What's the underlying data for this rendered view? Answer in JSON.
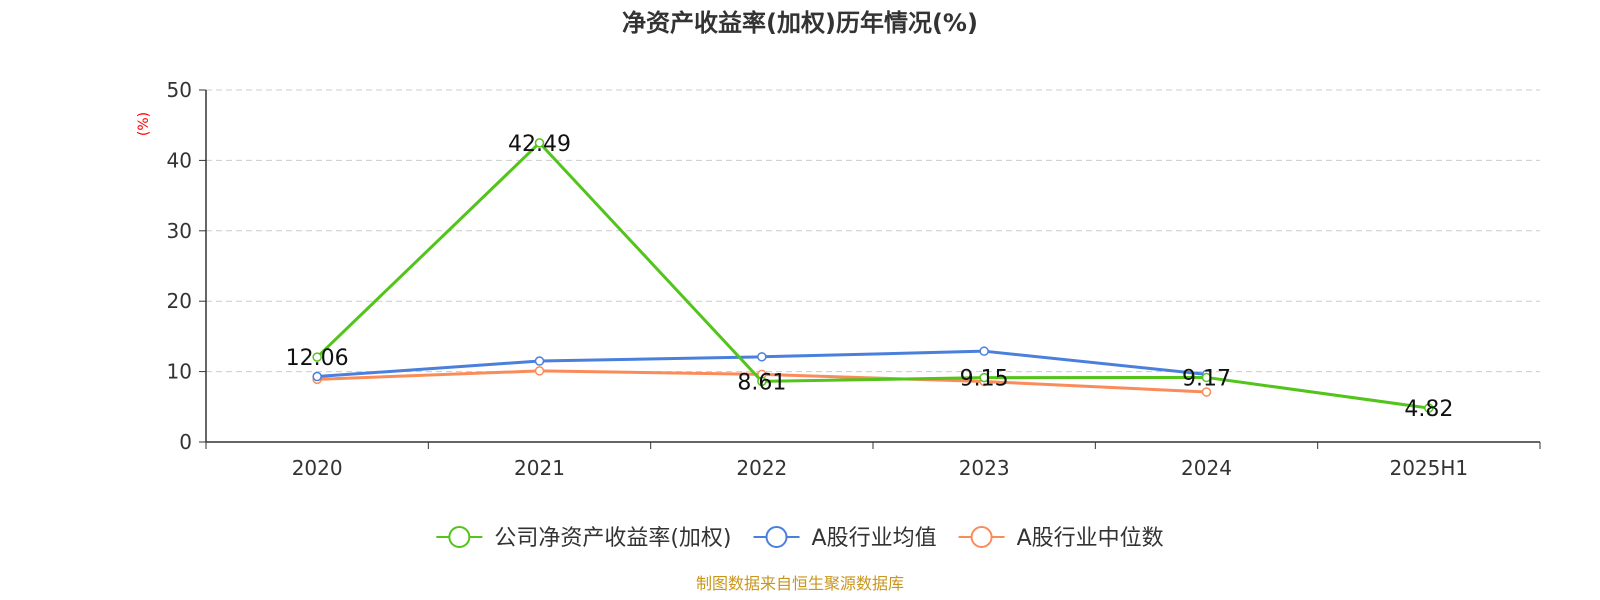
{
  "chart_data": {
    "type": "line",
    "title": "净资产收益率(加权)历年情况(%)",
    "ylabel": "(%)",
    "xlabel": "",
    "categories": [
      "2020",
      "2021",
      "2022",
      "2023",
      "2024",
      "2025H1"
    ],
    "ylim": [
      0,
      50
    ],
    "yticks": [
      "0",
      "10",
      "20",
      "30",
      "40",
      "50"
    ],
    "grid": true,
    "legend_position": "bottom",
    "series": [
      {
        "name": "公司净资产收益率(加权)",
        "color": "#52c41a",
        "values": [
          12.06,
          42.49,
          8.61,
          9.15,
          9.17,
          4.82
        ],
        "labels": [
          "12.06",
          "42.49",
          "8.61",
          "9.15",
          "9.17",
          "4.82"
        ]
      },
      {
        "name": "A股行业均值",
        "color": "#4a7fdc",
        "values": [
          9.3,
          11.5,
          12.1,
          12.9,
          9.6,
          null
        ]
      },
      {
        "name": "A股行业中位数",
        "color": "#fa8c5a",
        "values": [
          8.9,
          10.1,
          9.6,
          8.6,
          7.1,
          null
        ]
      }
    ],
    "source": "制图数据来自恒生聚源数据库"
  }
}
